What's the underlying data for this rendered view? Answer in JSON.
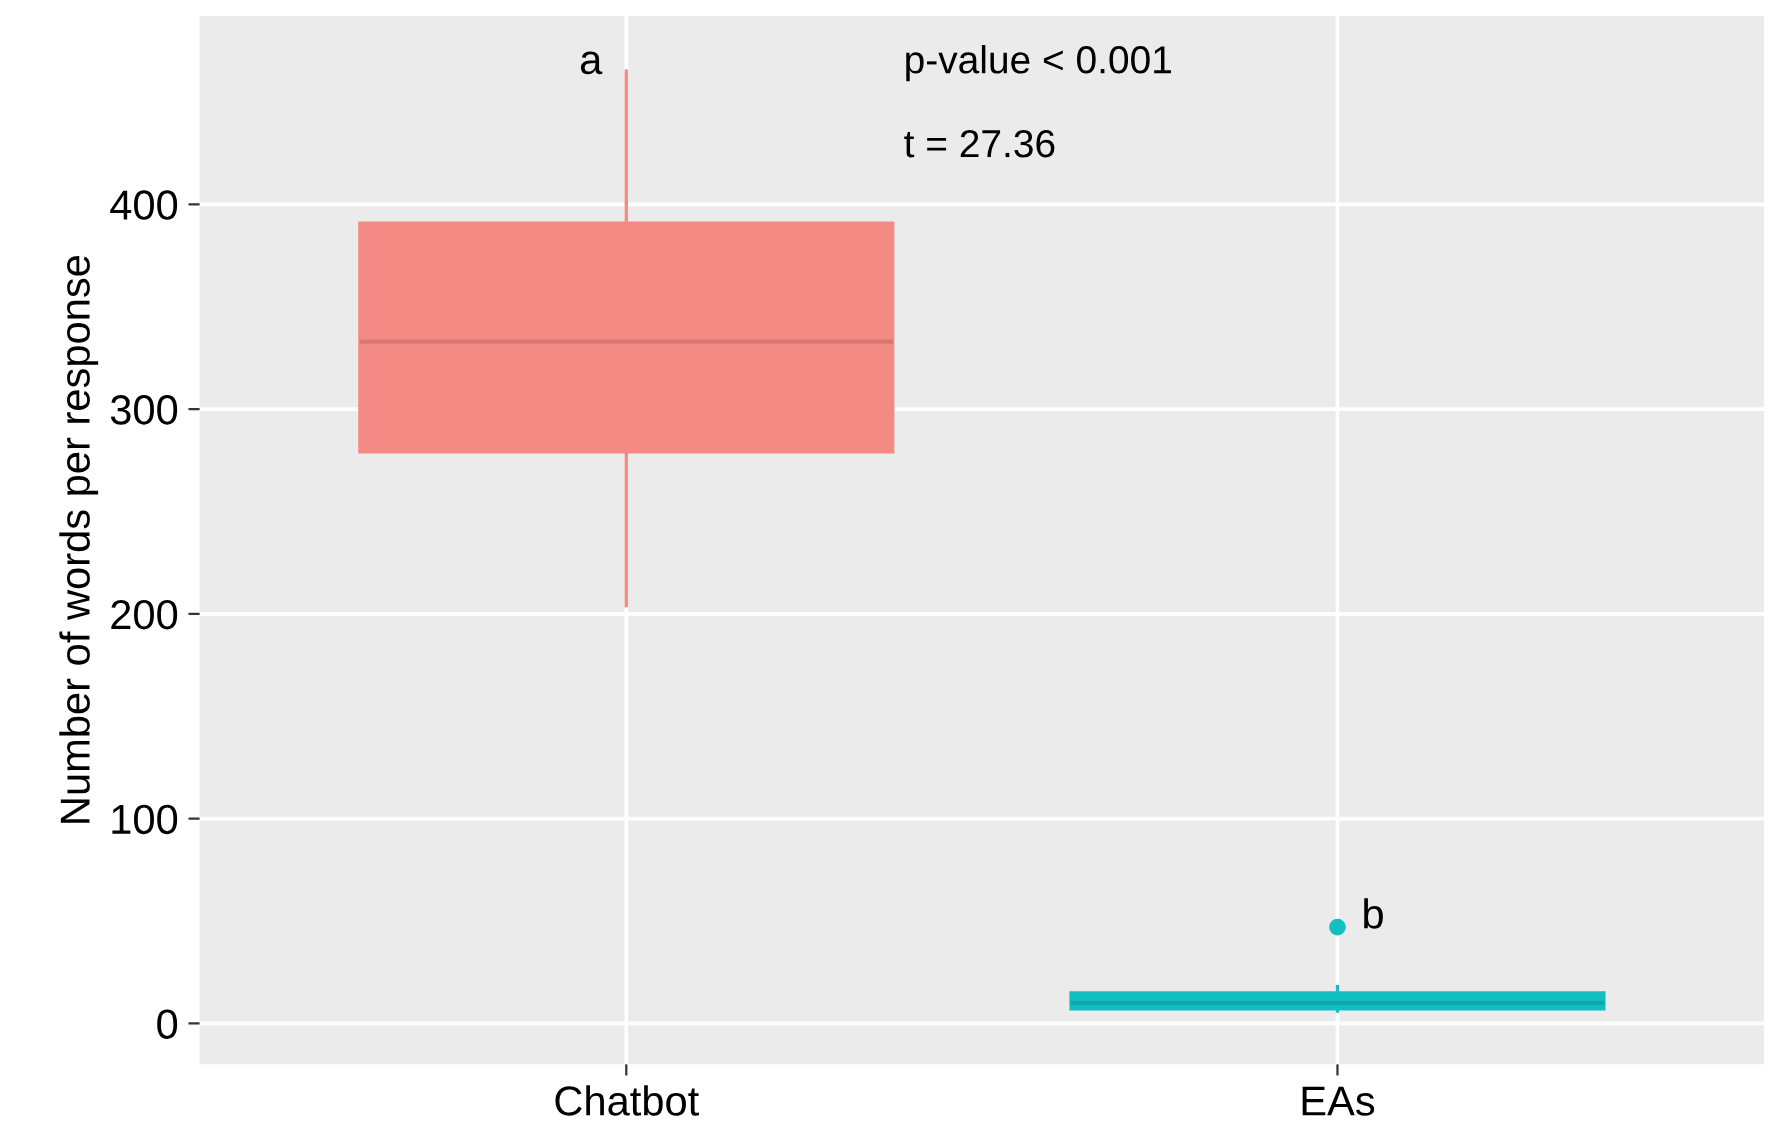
{
  "chart_data": {
    "type": "box",
    "ylabel": "Number of words per response",
    "categories": [
      "Chatbot",
      "EAs"
    ],
    "boxes": [
      {
        "low": 204,
        "q1": 279,
        "median": 333,
        "q3": 391,
        "high": 465
      },
      {
        "low": 6,
        "q1": 7,
        "median": 10,
        "q3": 15,
        "high": 18,
        "outliers": [
          47
        ]
      }
    ],
    "colors": [
      "#f38a83",
      "#13bec2"
    ],
    "ylim": [
      -20,
      492
    ],
    "yticks": [
      0,
      100,
      200,
      300,
      400
    ],
    "grid": true,
    "legend": false,
    "annotations": [
      "a",
      "b",
      "p-value < 0.001",
      "t = 27.36"
    ]
  }
}
